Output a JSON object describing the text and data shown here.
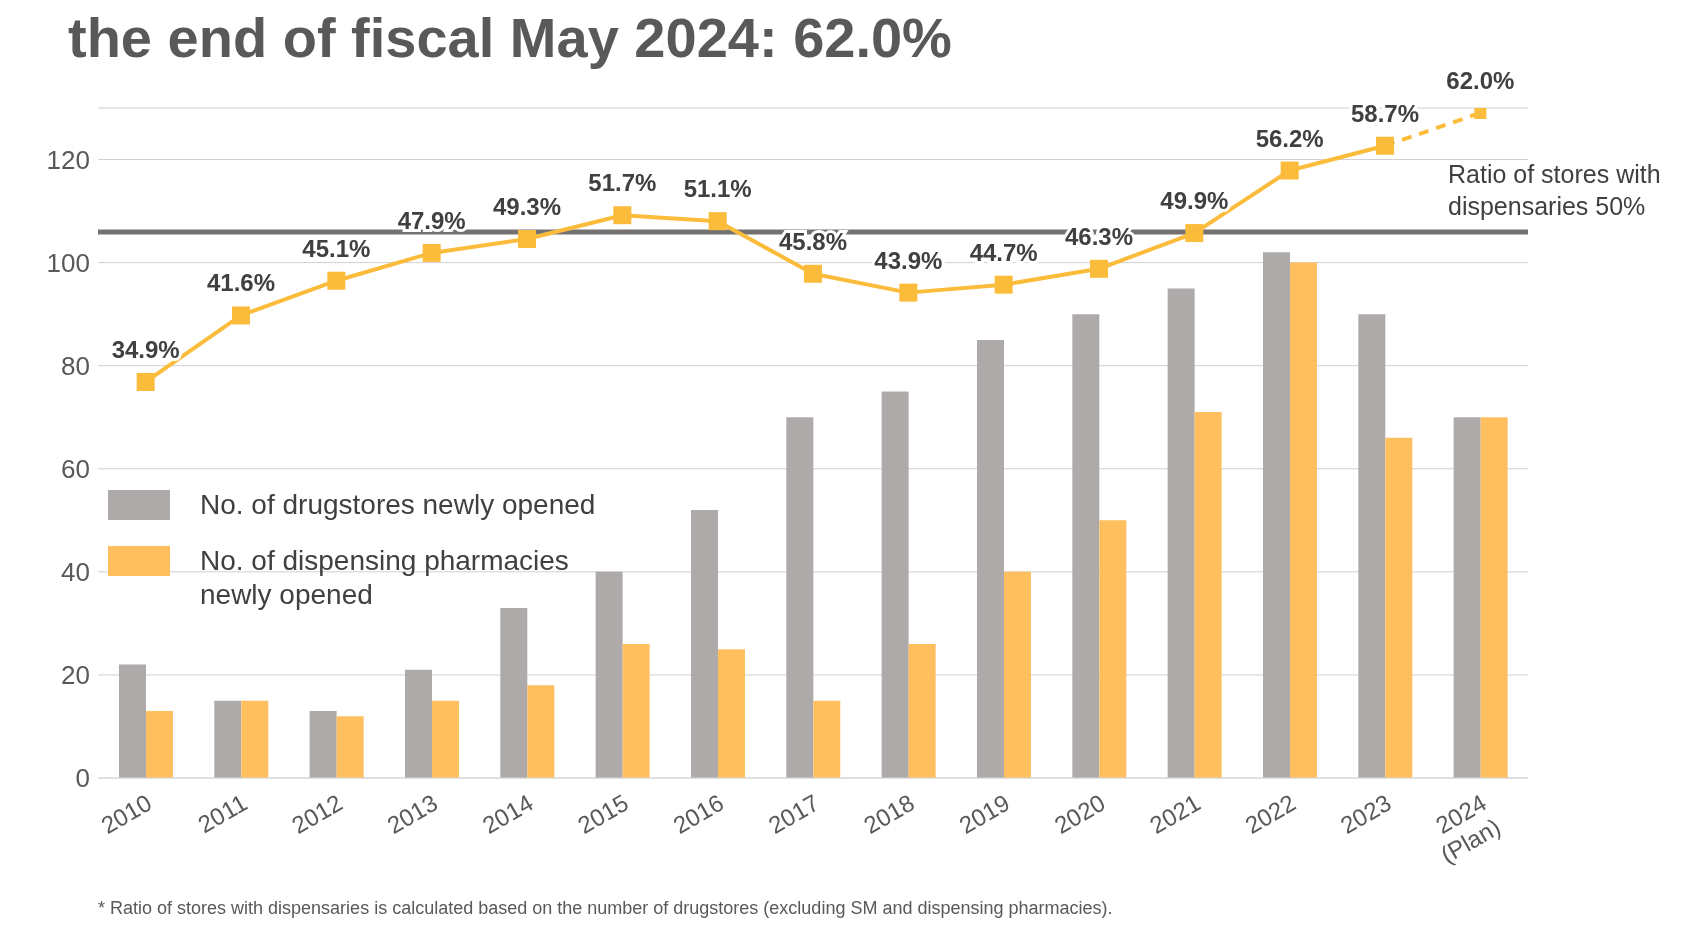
{
  "chart_data": {
    "type": "bar",
    "title": "the end of fiscal May 2024: 62.0%",
    "categories": [
      "2010",
      "2011",
      "2012",
      "2013",
      "2014",
      "2015",
      "2016",
      "2017",
      "2018",
      "2019",
      "2020",
      "2021",
      "2022",
      "2023",
      "2024\n(Plan)"
    ],
    "series": [
      {
        "name": "No. of drugstores newly opened",
        "color": "#aeaaaa",
        "values": [
          22,
          15,
          13,
          21,
          33,
          40,
          52,
          70,
          75,
          85,
          90,
          95,
          102,
          90,
          70
        ]
      },
      {
        "name": "No. of dispensing pharmacies newly opened",
        "color": "#ffbf5f",
        "values": [
          13,
          15,
          12,
          15,
          18,
          26,
          25,
          15,
          26,
          40,
          50,
          71,
          100,
          66,
          70
        ]
      },
      {
        "type": "line",
        "axis": "y2",
        "color": "#fbbc3c",
        "marker": "square",
        "line_style": "solid",
        "values": [
          34.9,
          41.6,
          45.1,
          47.9,
          49.3,
          51.7,
          51.1,
          45.8,
          43.9,
          44.7,
          46.3,
          49.9,
          56.2,
          58.7,
          null
        ],
        "value_labels": [
          "34.9%",
          "41.6%",
          "45.1%",
          "47.9%",
          "49.3%",
          "51.7%",
          "51.1%",
          "45.8%",
          "43.9%",
          "44.7%",
          "46.3%",
          "49.9%",
          "56.2%",
          "58.7%",
          null
        ]
      },
      {
        "type": "line",
        "axis": "y2",
        "color": "#fbbc3c",
        "marker": "square",
        "line_style": "dashed",
        "values": [
          null,
          null,
          null,
          null,
          null,
          null,
          null,
          null,
          null,
          null,
          null,
          null,
          null,
          58.7,
          62.0
        ],
        "value_labels": [
          null,
          null,
          null,
          null,
          null,
          null,
          null,
          null,
          null,
          null,
          null,
          null,
          null,
          null,
          "62.0%"
        ]
      }
    ],
    "ylim": [
      0,
      130
    ],
    "yticks": [
      0,
      20,
      40,
      60,
      80,
      100,
      120
    ],
    "y2lim": [
      -5,
      62.5
    ],
    "ref_lines": [
      {
        "axis": "y2",
        "value": 50,
        "label": "Ratio of stores with dispensaries 50%",
        "color": "#767171"
      }
    ],
    "grid": "y",
    "legend": "left",
    "annotations": [
      "* Ratio of stores with dispensaries is calculated based on the number of drugstores (excluding SM and dispensing pharmacies)."
    ]
  }
}
